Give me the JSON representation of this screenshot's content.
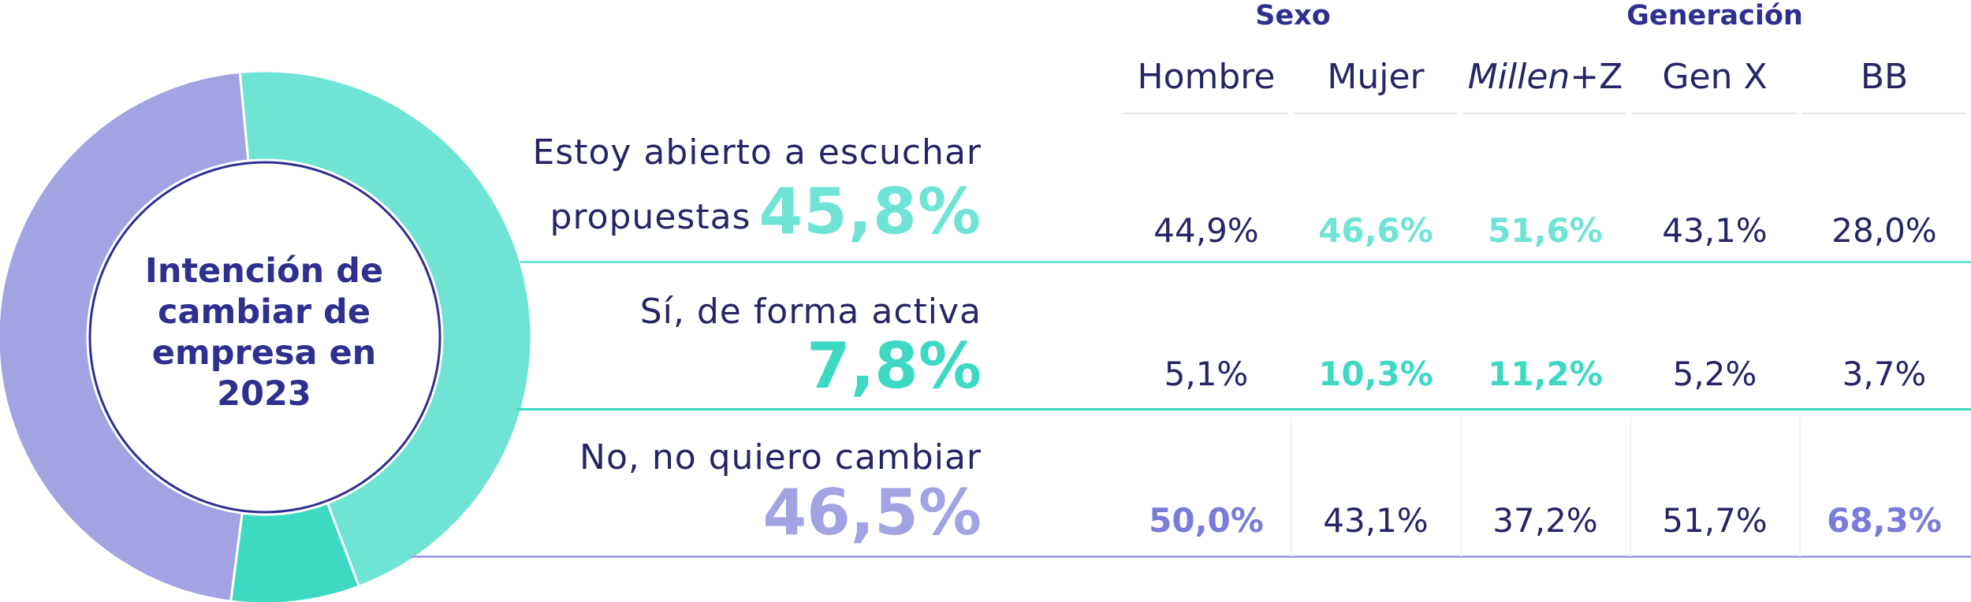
{
  "chart_data": {
    "type": "table",
    "title": "Intención de cambiar de empresa en 2023",
    "title_lines": [
      "Intención de",
      "cambiar de",
      "empresa en",
      "2023"
    ],
    "donut": {
      "slices": [
        {
          "label": "Estoy abierto a escuchar propuestas",
          "value": 45.8,
          "color": "#6fe3d4"
        },
        {
          "label": "Sí, de forma activa",
          "value": 7.8,
          "color": "#3dd9c3"
        },
        {
          "label": "No, no quiero cambiar",
          "value": 46.5,
          "color": "#a3a3e3"
        }
      ]
    },
    "groups": [
      {
        "name": "Sexo",
        "columns": [
          "Hombre",
          "Mujer"
        ]
      },
      {
        "name": "Generación",
        "columns": [
          "Millen+Z",
          "Gen X",
          "BB"
        ]
      }
    ],
    "columns": [
      "Hombre",
      "Mujer",
      "Millen+Z",
      "Gen X",
      "BB"
    ],
    "column_header_parts": {
      "millen_italic": "Millen",
      "millen_rest": "+Z"
    },
    "rows": [
      {
        "label": "Estoy abierto a escuchar propuestas",
        "label_line1": "Estoy abierto a escuchar",
        "label_line2": "propuestas",
        "total": "45,8%",
        "total_value": 45.8,
        "color": "#6fe3d4",
        "cells": [
          "44,9%",
          "46,6%",
          "51,6%",
          "43,1%",
          "28,0%"
        ],
        "highlight": [
          false,
          true,
          true,
          false,
          false
        ]
      },
      {
        "label": "Sí, de forma activa",
        "total": "7,8%",
        "total_value": 7.8,
        "color": "#3dd9c3",
        "cells": [
          "5,1%",
          "10,3%",
          "11,2%",
          "5,2%",
          "3,7%"
        ],
        "highlight": [
          false,
          true,
          true,
          false,
          false
        ]
      },
      {
        "label": "No, no quiero cambiar",
        "total": "46,5%",
        "total_value": 46.5,
        "color": "#a3a3e3",
        "highlight_color": "#7b7bd9",
        "cells": [
          "50,0%",
          "43,1%",
          "37,2%",
          "51,7%",
          "68,3%"
        ],
        "highlight": [
          true,
          false,
          false,
          false,
          true
        ]
      }
    ],
    "colors": {
      "navy": "#262565",
      "title_blue": "#2f2f8f"
    }
  }
}
